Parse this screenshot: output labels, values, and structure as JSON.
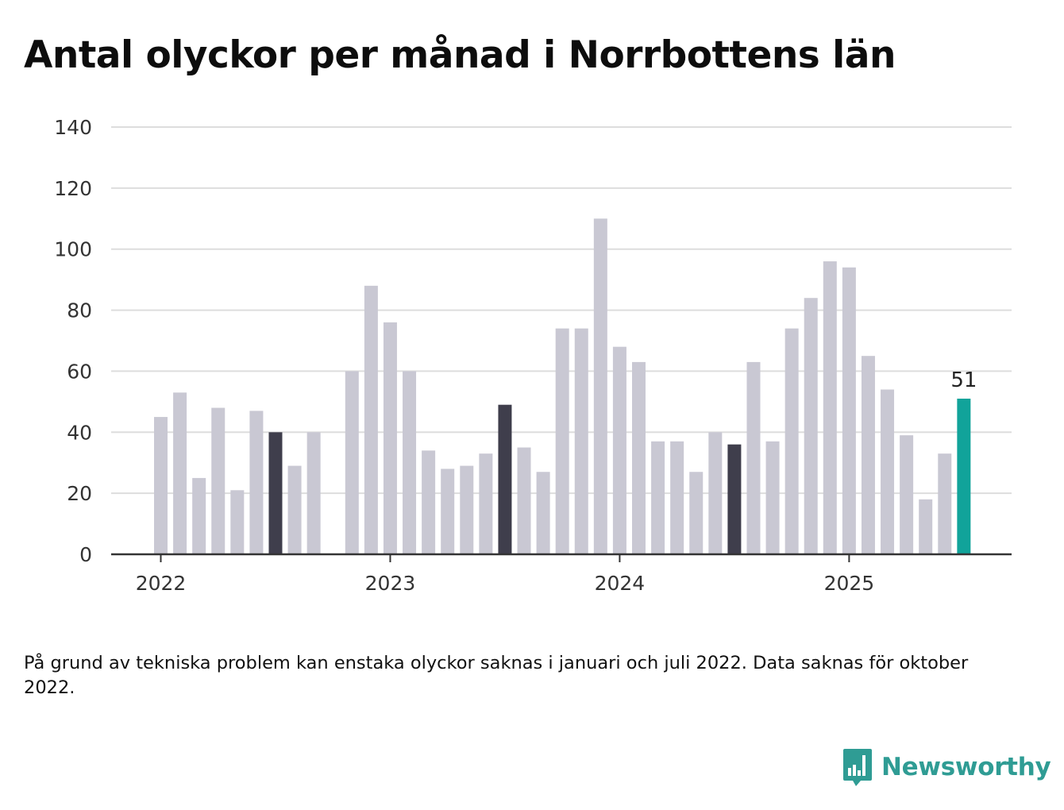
{
  "title": "Antal olyckor per månad i Norrbottens län",
  "footnote": "På grund av tekniska problem kan enstaka olyckor saknas i januari och juli 2022. Data saknas för oktober 2022.",
  "brand": {
    "name": "Newsworthy",
    "icon": "newsworthy-logo-icon"
  },
  "colors": {
    "default_bar": "#c9c8d3",
    "july_bar": "#3f3e4c",
    "latest_bar": "#11a39a",
    "grid": "#dddddd",
    "axis": "#333333",
    "brand": "#2f9c94"
  },
  "chart_data": {
    "type": "bar",
    "title": "Antal olyckor per månad i Norrbottens län",
    "xlabel": "",
    "ylabel": "",
    "ylim": [
      0,
      140
    ],
    "yticks": [
      0,
      20,
      40,
      60,
      80,
      100,
      120,
      140
    ],
    "xtick_labels": [
      {
        "label": "2022",
        "month": "2022-01"
      },
      {
        "label": "2023",
        "month": "2023-01"
      },
      {
        "label": "2024",
        "month": "2024-01"
      },
      {
        "label": "2025",
        "month": "2025-01"
      }
    ],
    "grid": true,
    "months": [
      "2022-01",
      "2022-02",
      "2022-03",
      "2022-04",
      "2022-05",
      "2022-06",
      "2022-07",
      "2022-08",
      "2022-09",
      "2022-10",
      "2022-11",
      "2022-12",
      "2023-01",
      "2023-02",
      "2023-03",
      "2023-04",
      "2023-05",
      "2023-06",
      "2023-07",
      "2023-08",
      "2023-09",
      "2023-10",
      "2023-11",
      "2023-12",
      "2024-01",
      "2024-02",
      "2024-03",
      "2024-04",
      "2024-05",
      "2024-06",
      "2024-07",
      "2024-08",
      "2024-09",
      "2024-10",
      "2024-11",
      "2024-12",
      "2025-01",
      "2025-02",
      "2025-03",
      "2025-04",
      "2025-05",
      "2025-06",
      "2025-07"
    ],
    "values": [
      45,
      53,
      25,
      48,
      21,
      47,
      40,
      29,
      40,
      null,
      60,
      88,
      76,
      60,
      34,
      28,
      29,
      33,
      49,
      35,
      27,
      74,
      74,
      110,
      68,
      63,
      37,
      37,
      27,
      40,
      36,
      63,
      37,
      74,
      84,
      96,
      94,
      65,
      54,
      39,
      18,
      33,
      51
    ],
    "highlighted_months": [
      "2022-07",
      "2023-07",
      "2024-07"
    ],
    "latest_month": "2025-07",
    "latest_label": "51"
  }
}
